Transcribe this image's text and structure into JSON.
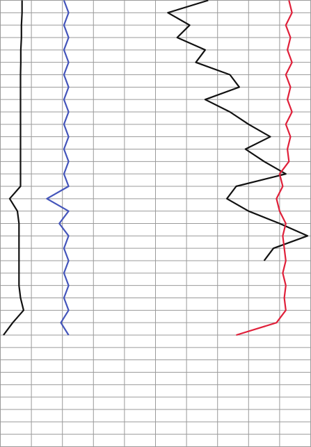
{
  "chart_data": {
    "type": "line",
    "orientation": "vertical",
    "grid": true,
    "xlim": [
      0,
      10
    ],
    "ylim": [
      0,
      36
    ],
    "xticks": [
      0,
      1,
      2,
      3,
      4,
      5,
      6,
      7,
      8,
      9,
      10
    ],
    "yticks": [
      0,
      1,
      2,
      3,
      4,
      5,
      6,
      7,
      8,
      9,
      10,
      11,
      12,
      13,
      14,
      15,
      16,
      17,
      18,
      19,
      20,
      21,
      22,
      23,
      24,
      25,
      26,
      27,
      28,
      29,
      30,
      31,
      32,
      33,
      34,
      35,
      36
    ],
    "y": [
      0,
      1,
      2,
      3,
      4,
      5,
      6,
      7,
      8,
      9,
      10,
      11,
      12,
      13,
      14,
      15,
      16,
      17,
      18,
      19,
      20,
      21,
      22,
      23,
      24,
      25,
      26,
      27
    ],
    "series": [
      {
        "color": "#111111",
        "values": [
          0.7,
          0.7,
          0.68,
          0.68,
          0.66,
          0.66,
          0.65,
          0.65,
          0.65,
          0.65,
          0.65,
          0.65,
          0.65,
          0.65,
          0.65,
          0.65,
          0.3,
          0.55,
          0.6,
          0.6,
          0.6,
          0.6,
          0.6,
          0.6,
          0.65,
          0.75,
          0.4,
          0.1
        ]
      },
      {
        "color": "#4455bb",
        "values": [
          2.05,
          2.2,
          2.05,
          2.2,
          2.05,
          2.2,
          2.05,
          2.2,
          2.05,
          2.2,
          2.05,
          2.2,
          2.05,
          2.2,
          2.05,
          2.2,
          1.5,
          2.2,
          1.9,
          2.2,
          2.05,
          2.2,
          2.05,
          2.2,
          2.05,
          2.2,
          1.95,
          2.2
        ]
      },
      {
        "color": "#111111",
        "values": [
          6.7,
          5.4,
          6.1,
          5.7,
          6.6,
          6.3,
          7.4,
          7.7,
          6.6,
          7.4,
          8.0,
          8.7,
          7.9,
          8.5,
          9.2,
          7.6,
          7.3,
          8.0,
          9.0,
          9.9,
          8.8,
          8.5,
          null,
          null,
          null,
          null,
          null,
          null
        ]
      },
      {
        "color": "#e0203a",
        "values": [
          9.3,
          9.4,
          9.2,
          9.35,
          9.25,
          9.4,
          9.2,
          9.35,
          9.25,
          9.4,
          9.2,
          9.35,
          9.25,
          9.3,
          9.0,
          9.1,
          8.9,
          9.0,
          9.2,
          9.1,
          9.15,
          9.2,
          9.1,
          9.2,
          9.15,
          9.2,
          8.9,
          7.6
        ]
      }
    ]
  }
}
